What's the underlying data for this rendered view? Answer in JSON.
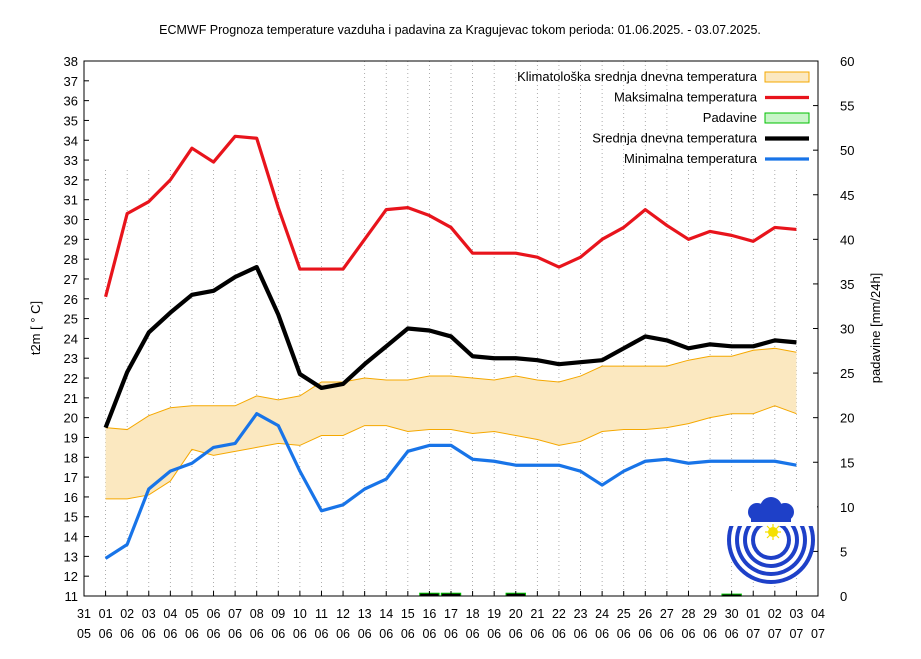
{
  "chart_data": {
    "type": "line",
    "title": "ECMWF Prognoza temperature vazduha i padavina za Kragujevac tokom perioda: 01.06.2025. - 03.07.2025.",
    "ylabel": "t2m [ ° C]",
    "y2label": "padavine [mm/24h]",
    "ylim": [
      11,
      38
    ],
    "y2lim": [
      0,
      60
    ],
    "legend_position": "top-right",
    "grid": "vertical-dotted",
    "x_ticks": [
      {
        "day": "31",
        "month": "05"
      },
      {
        "day": "01",
        "month": "06"
      },
      {
        "day": "02",
        "month": "06"
      },
      {
        "day": "03",
        "month": "06"
      },
      {
        "day": "04",
        "month": "06"
      },
      {
        "day": "05",
        "month": "06"
      },
      {
        "day": "06",
        "month": "06"
      },
      {
        "day": "07",
        "month": "06"
      },
      {
        "day": "08",
        "month": "06"
      },
      {
        "day": "09",
        "month": "06"
      },
      {
        "day": "10",
        "month": "06"
      },
      {
        "day": "11",
        "month": "06"
      },
      {
        "day": "12",
        "month": "06"
      },
      {
        "day": "13",
        "month": "06"
      },
      {
        "day": "14",
        "month": "06"
      },
      {
        "day": "15",
        "month": "06"
      },
      {
        "day": "16",
        "month": "06"
      },
      {
        "day": "17",
        "month": "06"
      },
      {
        "day": "18",
        "month": "06"
      },
      {
        "day": "19",
        "month": "06"
      },
      {
        "day": "20",
        "month": "06"
      },
      {
        "day": "21",
        "month": "06"
      },
      {
        "day": "22",
        "month": "06"
      },
      {
        "day": "23",
        "month": "06"
      },
      {
        "day": "24",
        "month": "06"
      },
      {
        "day": "25",
        "month": "06"
      },
      {
        "day": "26",
        "month": "06"
      },
      {
        "day": "27",
        "month": "06"
      },
      {
        "day": "28",
        "month": "06"
      },
      {
        "day": "29",
        "month": "06"
      },
      {
        "day": "30",
        "month": "06"
      },
      {
        "day": "01",
        "month": "07"
      },
      {
        "day": "02",
        "month": "07"
      },
      {
        "day": "03",
        "month": "07"
      },
      {
        "day": "04",
        "month": "07"
      }
    ],
    "y_ticks": [
      11,
      12,
      13,
      14,
      15,
      16,
      17,
      18,
      19,
      20,
      21,
      22,
      23,
      24,
      25,
      26,
      27,
      28,
      29,
      30,
      31,
      32,
      33,
      34,
      35,
      36,
      37,
      38
    ],
    "y2_ticks": [
      0,
      5,
      10,
      15,
      20,
      25,
      30,
      35,
      40,
      45,
      50,
      55,
      60
    ],
    "legend": [
      {
        "label": "Klimatološka srednja dnevna temperatura",
        "color": "#f5a800",
        "fill": "#fbe8c0",
        "style": "box"
      },
      {
        "label": "Maksimalna temperatura",
        "color": "#e8141c",
        "style": "line"
      },
      {
        "label": "Padavine",
        "color": "#00c000",
        "fill": "#c8f5c8",
        "style": "box"
      },
      {
        "label": "Srednja dnevna temperatura",
        "color": "#000000",
        "style": "line"
      },
      {
        "label": "Minimalna temperatura",
        "color": "#1874e8",
        "style": "line"
      }
    ],
    "series": [
      {
        "name": "Maksimalna temperatura",
        "color": "#e8141c",
        "axis": "left",
        "x": [
          "2025-06-01",
          "2025-06-02",
          "2025-06-03",
          "2025-06-04",
          "2025-06-05",
          "2025-06-06",
          "2025-06-07",
          "2025-06-08",
          "2025-06-09",
          "2025-06-10",
          "2025-06-11",
          "2025-06-12",
          "2025-06-13",
          "2025-06-14",
          "2025-06-15",
          "2025-06-16",
          "2025-06-17",
          "2025-06-18",
          "2025-06-19",
          "2025-06-20",
          "2025-06-21",
          "2025-06-22",
          "2025-06-23",
          "2025-06-24",
          "2025-06-25",
          "2025-06-26",
          "2025-06-27",
          "2025-06-28",
          "2025-06-29",
          "2025-06-30",
          "2025-07-01",
          "2025-07-02",
          "2025-07-03"
        ],
        "values": [
          26.1,
          30.3,
          30.9,
          32.0,
          33.6,
          32.9,
          34.2,
          34.1,
          30.6,
          27.5,
          27.5,
          27.5,
          29.0,
          30.5,
          30.6,
          30.2,
          29.6,
          28.3,
          28.3,
          28.3,
          28.1,
          27.6,
          28.1,
          29.0,
          29.6,
          30.5,
          29.7,
          29.0,
          29.4,
          29.2,
          28.9,
          29.6,
          29.5
        ]
      },
      {
        "name": "Srednja dnevna temperatura",
        "color": "#000000",
        "axis": "left",
        "x": [
          "2025-06-01",
          "2025-06-02",
          "2025-06-03",
          "2025-06-04",
          "2025-06-05",
          "2025-06-06",
          "2025-06-07",
          "2025-06-08",
          "2025-06-09",
          "2025-06-10",
          "2025-06-11",
          "2025-06-12",
          "2025-06-13",
          "2025-06-14",
          "2025-06-15",
          "2025-06-16",
          "2025-06-17",
          "2025-06-18",
          "2025-06-19",
          "2025-06-20",
          "2025-06-21",
          "2025-06-22",
          "2025-06-23",
          "2025-06-24",
          "2025-06-25",
          "2025-06-26",
          "2025-06-27",
          "2025-06-28",
          "2025-06-29",
          "2025-06-30",
          "2025-07-01",
          "2025-07-02",
          "2025-07-03"
        ],
        "values": [
          19.5,
          22.3,
          24.3,
          25.3,
          26.2,
          26.4,
          27.1,
          27.6,
          25.2,
          22.2,
          21.5,
          21.7,
          22.7,
          23.6,
          24.5,
          24.4,
          24.1,
          23.1,
          23.0,
          23.0,
          22.9,
          22.7,
          22.8,
          22.9,
          23.5,
          24.1,
          23.9,
          23.5,
          23.7,
          23.6,
          23.6,
          23.9,
          23.8
        ]
      },
      {
        "name": "Minimalna temperatura",
        "color": "#1874e8",
        "axis": "left",
        "x": [
          "2025-06-01",
          "2025-06-02",
          "2025-06-03",
          "2025-06-04",
          "2025-06-05",
          "2025-06-06",
          "2025-06-07",
          "2025-06-08",
          "2025-06-09",
          "2025-06-10",
          "2025-06-11",
          "2025-06-12",
          "2025-06-13",
          "2025-06-14",
          "2025-06-15",
          "2025-06-16",
          "2025-06-17",
          "2025-06-18",
          "2025-06-19",
          "2025-06-20",
          "2025-06-21",
          "2025-06-22",
          "2025-06-23",
          "2025-06-24",
          "2025-06-25",
          "2025-06-26",
          "2025-06-27",
          "2025-06-28",
          "2025-06-29",
          "2025-06-30",
          "2025-07-01",
          "2025-07-02",
          "2025-07-03"
        ],
        "values": [
          12.9,
          13.6,
          16.4,
          17.3,
          17.7,
          18.5,
          18.7,
          20.2,
          19.6,
          17.3,
          15.3,
          15.6,
          16.4,
          16.9,
          18.3,
          18.6,
          18.6,
          17.9,
          17.8,
          17.6,
          17.6,
          17.6,
          17.3,
          16.6,
          17.3,
          17.8,
          17.9,
          17.7,
          17.8,
          17.8,
          17.8,
          17.8,
          17.6
        ]
      },
      {
        "name": "Padavine",
        "color": "#00c000",
        "axis": "right",
        "x": [
          "2025-06-01",
          "2025-06-02",
          "2025-06-03",
          "2025-06-04",
          "2025-06-05",
          "2025-06-06",
          "2025-06-07",
          "2025-06-08",
          "2025-06-09",
          "2025-06-10",
          "2025-06-11",
          "2025-06-12",
          "2025-06-13",
          "2025-06-14",
          "2025-06-15",
          "2025-06-16",
          "2025-06-17",
          "2025-06-18",
          "2025-06-19",
          "2025-06-20",
          "2025-06-21",
          "2025-06-22",
          "2025-06-23",
          "2025-06-24",
          "2025-06-25",
          "2025-06-26",
          "2025-06-27",
          "2025-06-28",
          "2025-06-29",
          "2025-06-30",
          "2025-07-01",
          "2025-07-02",
          "2025-07-03"
        ],
        "values": [
          0,
          0,
          0,
          0,
          0,
          0,
          0,
          0,
          0,
          0,
          0,
          0,
          0,
          0,
          0,
          0.2,
          0.2,
          0,
          0,
          0.2,
          0,
          0,
          0,
          0,
          0,
          0,
          0,
          0,
          0,
          0.1,
          0,
          0,
          0
        ]
      },
      {
        "name": "Klimatološka srednja dnevna temperatura",
        "type": "band",
        "color": "#f5a800",
        "fill": "#fbe8c0",
        "axis": "left",
        "x": [
          "2025-06-01",
          "2025-06-02",
          "2025-06-03",
          "2025-06-04",
          "2025-06-05",
          "2025-06-06",
          "2025-06-07",
          "2025-06-08",
          "2025-06-09",
          "2025-06-10",
          "2025-06-11",
          "2025-06-12",
          "2025-06-13",
          "2025-06-14",
          "2025-06-15",
          "2025-06-16",
          "2025-06-17",
          "2025-06-18",
          "2025-06-19",
          "2025-06-20",
          "2025-06-21",
          "2025-06-22",
          "2025-06-23",
          "2025-06-24",
          "2025-06-25",
          "2025-06-26",
          "2025-06-27",
          "2025-06-28",
          "2025-06-29",
          "2025-06-30",
          "2025-07-01",
          "2025-07-02",
          "2025-07-03"
        ],
        "upper": [
          19.5,
          19.4,
          20.1,
          20.5,
          20.6,
          20.6,
          20.6,
          21.1,
          20.9,
          21.1,
          21.8,
          21.8,
          22.0,
          21.9,
          21.9,
          22.1,
          22.1,
          22.0,
          21.9,
          22.1,
          21.9,
          21.8,
          22.1,
          22.6,
          22.6,
          22.6,
          22.6,
          22.9,
          23.1,
          23.1,
          23.4,
          23.5,
          23.3
        ],
        "lower": [
          15.9,
          15.9,
          16.1,
          16.8,
          18.4,
          18.1,
          18.3,
          18.5,
          18.7,
          18.6,
          19.1,
          19.1,
          19.6,
          19.6,
          19.3,
          19.4,
          19.4,
          19.2,
          19.3,
          19.1,
          18.9,
          18.6,
          18.8,
          19.3,
          19.4,
          19.4,
          19.5,
          19.7,
          20.0,
          20.2,
          20.2,
          20.6,
          20.2
        ]
      }
    ]
  }
}
